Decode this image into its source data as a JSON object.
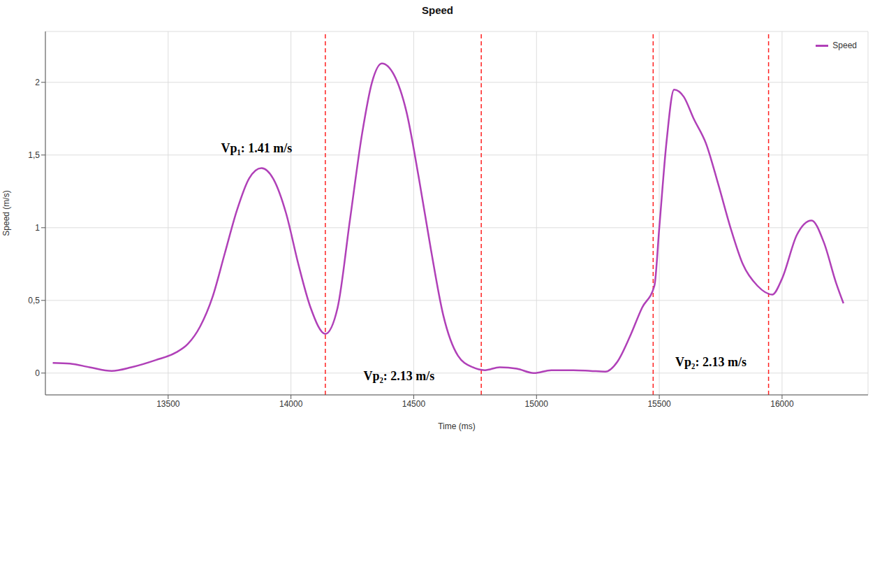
{
  "chart_data": {
    "type": "line",
    "title": "Speed",
    "x_label": "Time (ms)",
    "y_label": "Speed (m/s)",
    "x": [
      13030,
      13100,
      13180,
      13270,
      13350,
      13450,
      13530,
      13580,
      13630,
      13680,
      13730,
      13780,
      13830,
      13880,
      13930,
      13980,
      14030,
      14080,
      14140,
      14190,
      14240,
      14290,
      14330,
      14370,
      14420,
      14470,
      14520,
      14570,
      14620,
      14680,
      14740,
      14790,
      14850,
      14920,
      14990,
      15060,
      15150,
      15220,
      15280,
      15330,
      15380,
      15430,
      15480,
      15500,
      15530,
      15560,
      15600,
      15640,
      15690,
      15740,
      15790,
      15840,
      15900,
      15960,
      16000,
      16060,
      16120,
      16170,
      16220,
      16250
    ],
    "series": [
      {
        "name": "Speed",
        "color": "#b040b8",
        "values": [
          0.07,
          0.065,
          0.04,
          0.015,
          0.04,
          0.09,
          0.14,
          0.2,
          0.32,
          0.52,
          0.82,
          1.12,
          1.34,
          1.41,
          1.33,
          1.1,
          0.75,
          0.45,
          0.27,
          0.45,
          1.05,
          1.65,
          2.0,
          2.13,
          2.05,
          1.8,
          1.35,
          0.85,
          0.4,
          0.12,
          0.04,
          0.02,
          0.04,
          0.03,
          0.0,
          0.02,
          0.02,
          0.015,
          0.01,
          0.08,
          0.25,
          0.45,
          0.6,
          1.0,
          1.6,
          1.95,
          1.9,
          1.75,
          1.58,
          1.3,
          1.0,
          0.75,
          0.6,
          0.54,
          0.65,
          0.95,
          1.05,
          0.9,
          0.62,
          0.48
        ]
      }
    ],
    "xlim": [
      13000,
      16350
    ],
    "xticks": [
      13500,
      14000,
      14500,
      15000,
      15500,
      16000
    ],
    "ylim": [
      -0.15,
      2.35
    ],
    "yticks": [
      0,
      {
        "value": 0.5,
        "label": "0,5"
      },
      1,
      {
        "value": 1.5,
        "label": "1,5"
      },
      2
    ],
    "grid": true,
    "legend": "upper right",
    "reference_lines": {
      "x": [
        14140,
        14775,
        15475,
        15945
      ],
      "color": "#ff2020",
      "line_style": "dashed"
    },
    "annotations": [
      {
        "text": "Vp₁: 1.41 m/s",
        "x": 13860,
        "y": 1.55
      },
      {
        "text": "Vp₂: 2.13 m/s",
        "x": 14440,
        "y": -0.02
      },
      {
        "text": "Vp₂: 2.13 m/s",
        "x": 15710,
        "y": 0.08
      }
    ]
  }
}
